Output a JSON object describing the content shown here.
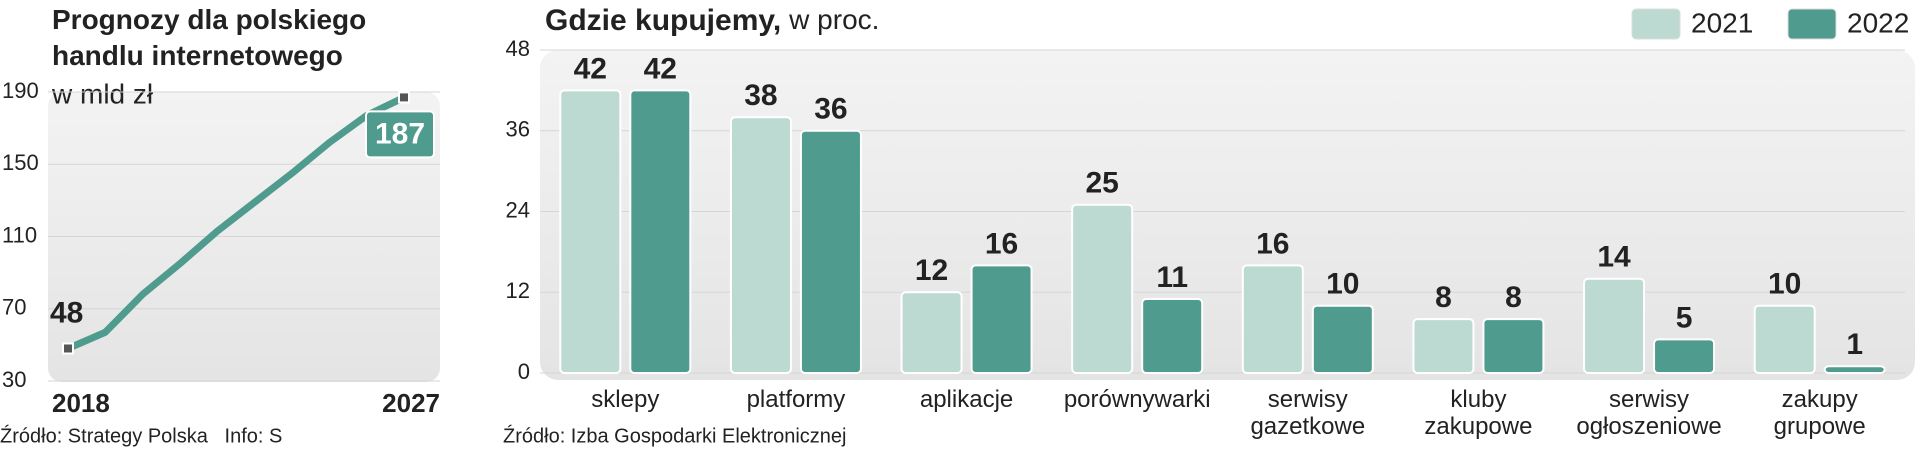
{
  "chart_data": [
    {
      "type": "line",
      "title": "Prognozy dla polskiego handlu internetowego",
      "subtitle": "w mld zł",
      "x": [
        2018,
        2019,
        2020,
        2021,
        2022,
        2023,
        2024,
        2025,
        2026,
        2027
      ],
      "values": [
        48,
        57,
        78,
        95,
        113,
        129,
        145,
        162,
        177,
        187
      ],
      "color": "#4f9b8e",
      "xlim": [
        2018,
        2027
      ],
      "xticks": [
        2018,
        2027
      ],
      "ylim": [
        30,
        190
      ],
      "yticks": [
        30,
        70,
        110,
        150,
        190
      ],
      "grid": true,
      "source": "Źródło: Strategy Polska   Info: S"
    },
    {
      "type": "bar",
      "title": "Gdzie kupujemy,",
      "subtitle": "w proc.",
      "categories": [
        "sklepy",
        "platformy",
        "aplikacje",
        "porównywarki",
        "serwisy gazetkowe",
        "kluby zakupowe",
        "serwisy ogłoszeniowe",
        "zakupy grupowe"
      ],
      "series": [
        {
          "name": "2021",
          "color": "#bcd9d2",
          "values": [
            42,
            38,
            12,
            25,
            16,
            8,
            14,
            10
          ]
        },
        {
          "name": "2022",
          "color": "#4f9b8e",
          "values": [
            42,
            36,
            16,
            11,
            10,
            8,
            5,
            1
          ]
        }
      ],
      "ylim": [
        0,
        48
      ],
      "yticks": [
        0,
        12,
        24,
        36,
        48
      ],
      "grid": true,
      "legend": "top-right",
      "source": "Źródło: Izba Gospodarki Elektronicznej"
    }
  ]
}
